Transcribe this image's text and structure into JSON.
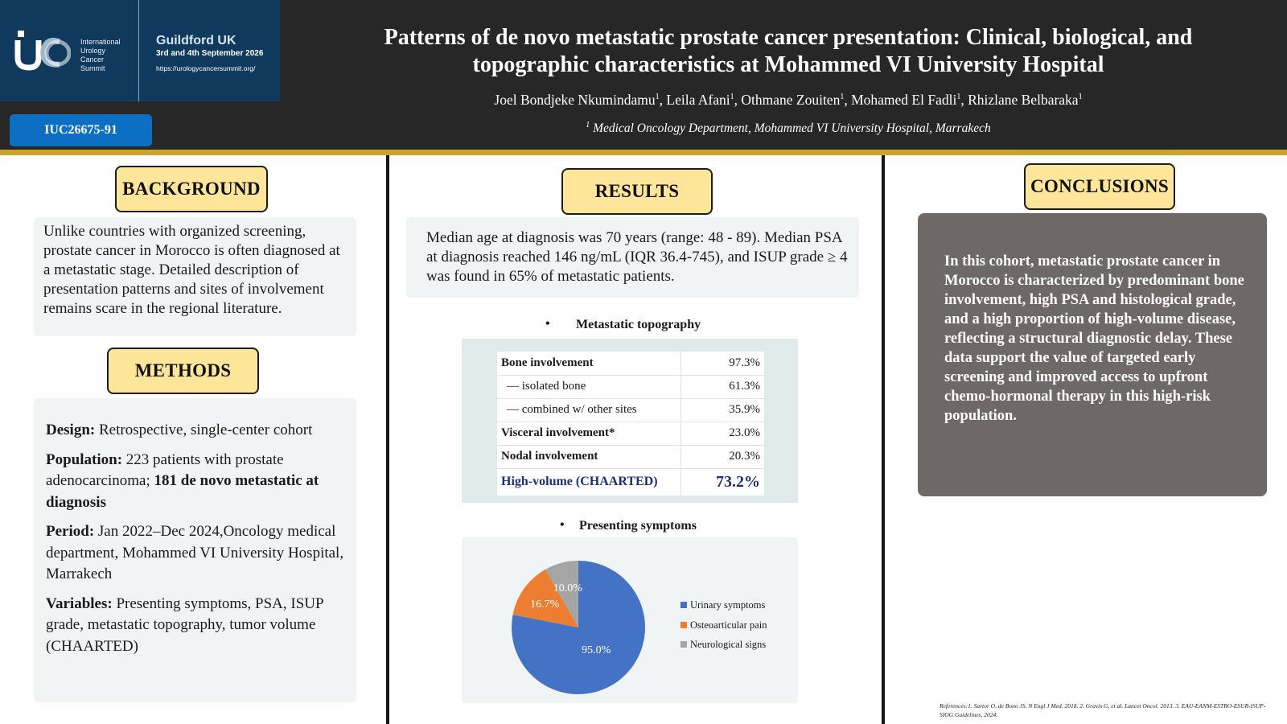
{
  "header": {
    "logo": {
      "org_lines": [
        "International",
        "Urology",
        "Cancer",
        "Summit"
      ],
      "city": "Guildford UK",
      "dates": "3rd and 4th September 2026",
      "url": "https://urologycancersummit.org/"
    },
    "poster_id": "IUC26675-91",
    "title_line1": "Patterns of de novo metastatic prostate cancer presentation: Clinical, biological, and",
    "title_line2": "topographic characteristics at Mohammed VI University Hospital",
    "authors": [
      "Joel Bondjeke Nkumindamu",
      "Leila Afani",
      "Othmane Zouiten",
      "Mohamed El Fadli",
      "Rhizlane Belbaraka"
    ],
    "author_sup": "1",
    "affiliation_sup": "1",
    "affiliation": "Medical Oncology Department, Mohammed VI University Hospital, Marrakech"
  },
  "background": {
    "heading": "BACKGROUND",
    "text": "Unlike countries with organized screening, prostate cancer in Morocco is often diagnosed at a metastatic stage. Detailed description of presentation patterns and sites of involvement remains scare in the regional literature."
  },
  "methods": {
    "heading": "METHODS",
    "items": [
      {
        "label": "Design:",
        "text": "Retrospective, single-center cohort",
        "bold_tail": ""
      },
      {
        "label": "Population:",
        "text": "223 patients with prostate adenocarcinoma;",
        "bold_tail": "181 de novo metastatic at diagnosis"
      },
      {
        "label": "Period:",
        "text": "Jan 2022–Dec 2024,Oncology medical department, Mohammed VI University Hospital, Marrakech",
        "bold_tail": ""
      },
      {
        "label": "Variables:",
        "text": "Presenting symptoms, PSA, ISUP grade, metastatic topography, tumor volume (CHAARTED)",
        "bold_tail": ""
      }
    ]
  },
  "results": {
    "heading": "RESULTS",
    "summary": "Median age at diagnosis was 70 years (range: 48 - 89). Median PSA at diagnosis reached 146 ng/mL (IQR 36.4-745), and ISUP grade ≥ 4 was found in 65% of metastatic patients.",
    "bullet": "•",
    "topography": {
      "heading": "Metastatic topography",
      "rows": [
        {
          "label": "Bone involvement",
          "value": "97.3%",
          "style": "bold"
        },
        {
          "label": "— isolated bone",
          "value": "61.3%",
          "style": "sub"
        },
        {
          "label": "— combined w/ other sites",
          "value": "35.9%",
          "style": "sub"
        },
        {
          "label": "Visceral involvement*",
          "value": "23.0%",
          "style": "bold"
        },
        {
          "label": "Nodal involvement",
          "value": "20.3%",
          "style": "bold"
        },
        {
          "label": "High-volume (CHAARTED)",
          "value": "73.2%",
          "style": "highlight"
        }
      ]
    },
    "symptoms_heading": "Presenting symptoms"
  },
  "chart_data": {
    "type": "pie",
    "categories": [
      "Urinary symptoms",
      "Osteoarticular pain",
      "Neurological signs"
    ],
    "values": [
      95.0,
      16.7,
      10.0
    ],
    "data_labels": [
      "95.0%",
      "16.7%",
      "10.0%"
    ],
    "colors": [
      "#4472c4",
      "#ed7d31",
      "#a5a5a5"
    ],
    "legend_position": "right"
  },
  "conclusions": {
    "heading": "CONCLUSIONS",
    "text": "In this cohort, metastatic prostate cancer in Morocco is characterized by predominant bone involvement, high PSA and histological grade, and a high proportion of high-volume disease, reflecting a structural diagnostic delay. These data support the value of targeted early screening and improved access to upfront chemo-hormonal therapy in this high-risk population."
  },
  "references": "References:1. Sartor O, de Bono JS. N Engl J Med. 2018. 2. Gravis G, et al. Lancet Oncol. 2013. 3. EAU-EANM-ESTRO-ESUR-ISUP-SIOG Guidelines, 2024."
}
